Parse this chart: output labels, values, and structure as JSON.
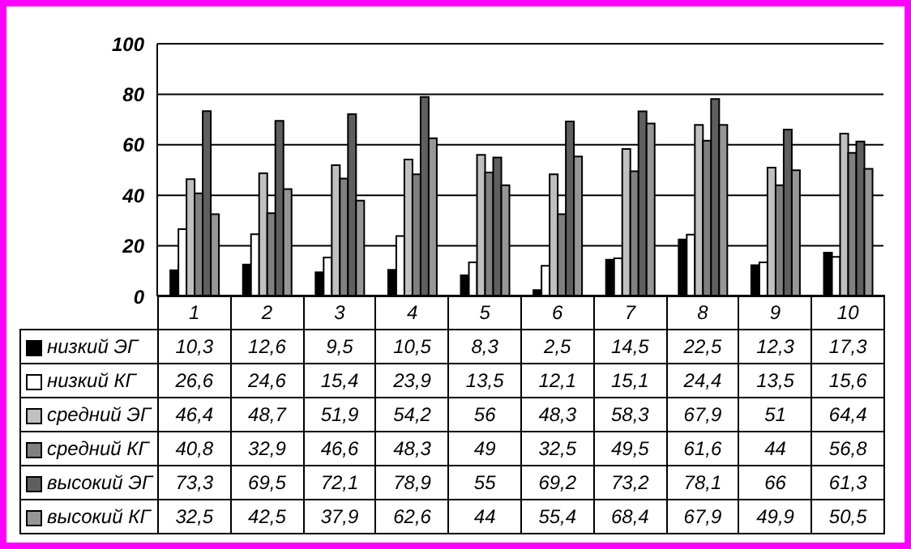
{
  "chart_data": {
    "type": "bar",
    "categories": [
      "1",
      "2",
      "3",
      "4",
      "5",
      "6",
      "7",
      "8",
      "9",
      "10"
    ],
    "series": [
      {
        "name": "низкий ЭГ",
        "color": "#000000",
        "values": [
          10.3,
          12.6,
          9.5,
          10.5,
          8.3,
          2.5,
          14.5,
          22.5,
          12.3,
          17.3
        ],
        "value_labels": [
          "10,3",
          "12,6",
          "9,5",
          "10,5",
          "8,3",
          "2,5",
          "14,5",
          "22,5",
          "12,3",
          "17,3"
        ]
      },
      {
        "name": "низкий КГ",
        "color": "#ffffff",
        "values": [
          26.6,
          24.6,
          15.4,
          23.9,
          13.5,
          12.1,
          15.1,
          24.4,
          13.5,
          15.6
        ],
        "value_labels": [
          "26,6",
          "24,6",
          "15,4",
          "23,9",
          "13,5",
          "12,1",
          "15,1",
          "24,4",
          "13,5",
          "15,6"
        ]
      },
      {
        "name": "средний ЭГ",
        "color": "#c0c0c0",
        "values": [
          46.4,
          48.7,
          51.9,
          54.2,
          56,
          48.3,
          58.3,
          67.9,
          51,
          64.4
        ],
        "value_labels": [
          "46,4",
          "48,7",
          "51,9",
          "54,2",
          "56",
          "48,3",
          "58,3",
          "67,9",
          "51",
          "64,4"
        ]
      },
      {
        "name": "средний КГ",
        "color": "#808080",
        "values": [
          40.8,
          32.9,
          46.6,
          48.3,
          49,
          32.5,
          49.5,
          61.6,
          44,
          56.8
        ],
        "value_labels": [
          "40,8",
          "32,9",
          "46,6",
          "48,3",
          "49",
          "32,5",
          "49,5",
          "61,6",
          "44",
          "56,8"
        ]
      },
      {
        "name": "высокий ЭГ",
        "color": "#5f5f5f",
        "values": [
          73.3,
          69.5,
          72.1,
          78.9,
          55,
          69.2,
          73.2,
          78.1,
          66,
          61.3
        ],
        "value_labels": [
          "73,3",
          "69,5",
          "72,1",
          "78,9",
          "55",
          "69,2",
          "73,2",
          "78,1",
          "66",
          "61,3"
        ]
      },
      {
        "name": "высокий КГ",
        "color": "#969696",
        "values": [
          32.5,
          42.5,
          37.9,
          62.6,
          44,
          55.4,
          68.4,
          67.9,
          49.9,
          50.5
        ],
        "value_labels": [
          "32,5",
          "42,5",
          "37,9",
          "62,6",
          "44",
          "55,4",
          "68,4",
          "67,9",
          "49,9",
          "50,5"
        ]
      }
    ],
    "ylim": [
      0,
      100
    ],
    "yticks": [
      0,
      20,
      40,
      60,
      80,
      100
    ],
    "grid": "y",
    "legend": "bottom"
  }
}
